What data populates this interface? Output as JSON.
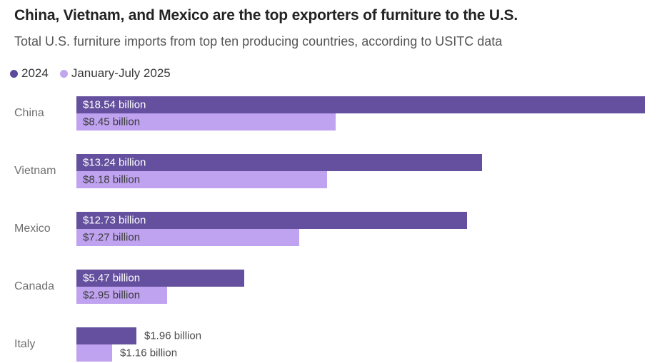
{
  "header": {
    "title": "China, Vietnam, and Mexico are the top exporters of furniture to the U.S.",
    "subtitle": "Total U.S. furniture imports from top ten producing countries, according to USITC data"
  },
  "legend": [
    {
      "label": "2024",
      "color": "#5d4a9c"
    },
    {
      "label": "January-July 2025",
      "color": "#c0a5f0"
    }
  ],
  "colors": {
    "bar_2024": "#64509e",
    "bar_2025": "#bfa2f0",
    "title_text": "#232323",
    "subtitle_text": "#555555",
    "country_label": "#6f6f6f",
    "label_on_dark": "#ffffff",
    "label_on_light": "#3b3b3b",
    "label_outside": "#4b4b4b",
    "background": "#ffffff"
  },
  "chart_data": {
    "type": "bar",
    "orientation": "horizontal",
    "title": "China, Vietnam, and Mexico are the top exporters of furniture to the U.S.",
    "subtitle": "Total U.S. furniture imports from top ten producing countries, according to USITC data",
    "unit": "billion USD",
    "categories": [
      "China",
      "Vietnam",
      "Mexico",
      "Canada",
      "Italy"
    ],
    "series": [
      {
        "name": "2024",
        "color": "#64509e",
        "values": [
          18.54,
          13.24,
          12.73,
          5.47,
          1.96
        ],
        "labels": [
          "$18.54 billion",
          "$13.24 billion",
          "$12.73 billion",
          "$5.47 billion",
          "$1.96 billion"
        ]
      },
      {
        "name": "January-July 2025",
        "color": "#bfa2f0",
        "values": [
          8.45,
          8.18,
          7.27,
          2.95,
          1.16
        ],
        "labels": [
          "$8.45 billion",
          "$8.18 billion",
          "$7.27 billion",
          "$2.95 billion",
          "$1.16 billion"
        ]
      }
    ],
    "xlim": [
      0,
      18.54
    ],
    "grid": false,
    "legend_position": "top-left",
    "value_labels": "inside bar start; outside right of bar when bar too short"
  }
}
